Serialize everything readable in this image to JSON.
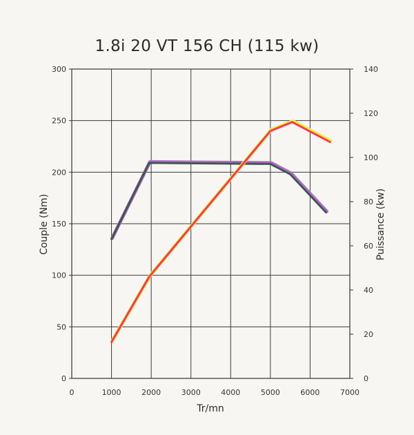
{
  "chart_data": {
    "type": "line",
    "title": "1.8i  20 VT 156 CH (115 kw)",
    "xlabel": "Tr/mn",
    "ylabel_left": "Couple (Nm)",
    "ylabel_right": "Puissance (kw)",
    "xlim": [
      0,
      7000
    ],
    "ylim_left": [
      0,
      300
    ],
    "ylim_right": [
      0,
      140
    ],
    "grid": true,
    "x_ticks": [
      "0",
      "1000",
      "2000",
      "3000",
      "4000",
      "5000",
      "6000",
      "7000"
    ],
    "y_left_ticks": [
      "0",
      "50",
      "100",
      "150",
      "200",
      "250",
      "300"
    ],
    "y_right_ticks": [
      "0",
      "20",
      "40",
      "60",
      "80",
      "100",
      "120",
      "140"
    ],
    "series": [
      {
        "axis": "left",
        "color": "#3d5a4a",
        "highlight": "#b56ad0",
        "points": [
          [
            1000,
            135
          ],
          [
            1950,
            209
          ],
          [
            5000,
            208
          ],
          [
            5500,
            198
          ],
          [
            6400,
            161
          ]
        ]
      },
      {
        "axis": "right",
        "color": "#f03a5c",
        "highlight": "#f6ec3a",
        "points": [
          [
            1000,
            16.5
          ],
          [
            1950,
            46
          ],
          [
            5000,
            112
          ],
          [
            5550,
            116
          ],
          [
            6500,
            107
          ]
        ]
      }
    ]
  }
}
